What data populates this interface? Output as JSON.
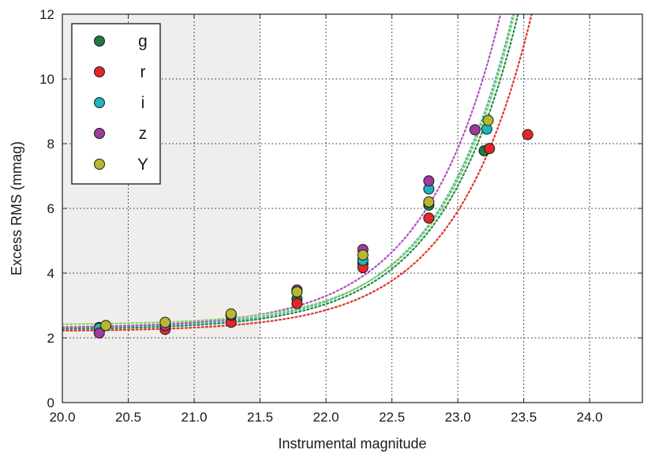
{
  "chart_data": {
    "type": "scatter",
    "title": "",
    "xlabel": "Instrumental magnitude",
    "ylabel": "Excess RMS (mmag)",
    "xlim": [
      20.0,
      24.4
    ],
    "ylim": [
      0,
      12
    ],
    "xticks": [
      20.0,
      20.5,
      21.0,
      21.5,
      22.0,
      22.5,
      23.0,
      23.5,
      24.0
    ],
    "xtick_labels": [
      "20.0",
      "20.5",
      "21.0",
      "21.5",
      "22.0",
      "22.5",
      "23.0",
      "23.5",
      "24.0"
    ],
    "yticks": [
      0,
      2,
      4,
      6,
      8,
      10,
      12
    ],
    "ytick_labels": [
      "0",
      "2",
      "4",
      "6",
      "8",
      "10",
      "12"
    ],
    "grid": true,
    "grid_style": "dotted",
    "shaded_region": {
      "x": [
        20.0,
        21.5
      ],
      "color": "#efeeec"
    },
    "legend_position": "top-left",
    "series": [
      {
        "name": "g",
        "color": "#1f7a45",
        "points": [
          [
            20.28,
            2.32
          ],
          [
            20.78,
            2.3
          ],
          [
            21.28,
            2.72
          ],
          [
            21.78,
            3.2
          ],
          [
            22.28,
            4.3
          ],
          [
            22.78,
            6.1
          ],
          [
            23.2,
            7.78
          ]
        ],
        "fit": {
          "a": 2.25,
          "b": 0.4,
          "x0": 21.6,
          "k": 1.72
        }
      },
      {
        "name": "r",
        "color": "#e4262a",
        "points": [
          [
            20.28,
            2.22
          ],
          [
            20.78,
            2.26
          ],
          [
            21.28,
            2.48
          ],
          [
            21.78,
            3.06
          ],
          [
            22.28,
            4.17
          ],
          [
            22.78,
            5.7
          ],
          [
            23.24,
            7.85
          ],
          [
            23.53,
            8.28
          ]
        ],
        "fit": {
          "a": 2.2,
          "b": 0.33,
          "x0": 21.6,
          "k": 1.73
        }
      },
      {
        "name": "i",
        "color": "#1fb5bd",
        "points": [
          [
            20.28,
            2.3
          ],
          [
            20.78,
            2.4
          ],
          [
            21.28,
            2.7
          ],
          [
            21.78,
            3.42
          ],
          [
            22.28,
            4.4
          ],
          [
            22.78,
            6.6
          ],
          [
            23.22,
            8.45
          ]
        ],
        "fit": {
          "a": 2.3,
          "b": 0.41,
          "x0": 21.6,
          "k": 1.74
        }
      },
      {
        "name": "z",
        "color": "#9d3c9e",
        "points": [
          [
            20.28,
            2.15
          ],
          [
            20.78,
            2.38
          ],
          [
            21.28,
            2.7
          ],
          [
            21.78,
            3.48
          ],
          [
            22.28,
            4.73
          ],
          [
            22.78,
            6.85
          ],
          [
            23.13,
            8.43
          ]
        ],
        "fit": {
          "a": 2.3,
          "b": 0.5,
          "x0": 21.6,
          "k": 1.72
        }
      },
      {
        "name": "Y",
        "color": "#b8b830",
        "points": [
          [
            20.33,
            2.38
          ],
          [
            20.78,
            2.48
          ],
          [
            21.28,
            2.74
          ],
          [
            21.78,
            3.42
          ],
          [
            22.28,
            4.56
          ],
          [
            22.78,
            6.2
          ],
          [
            23.23,
            8.72
          ]
        ],
        "fit": {
          "a": 2.4,
          "b": 0.37,
          "x0": 21.6,
          "k": 1.78
        }
      }
    ],
    "fit_colors": [
      "#1f8a50",
      "#e0352a",
      "#4fb8b0",
      "#b050c0",
      "#8ed060"
    ]
  }
}
